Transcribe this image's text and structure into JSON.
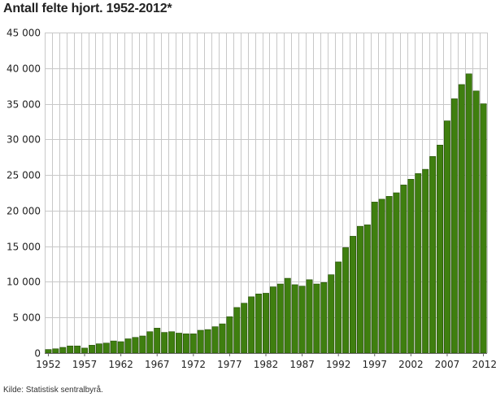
{
  "title": "Antall felte hjort. 1952-2012*",
  "source": "Kilde: Statistisk sentralbyrå.",
  "colors": {
    "bar": "#3f7f0f",
    "bar_stroke": "#234d06",
    "grid": "#c8c8c8",
    "axis": "#666666"
  },
  "chart_data": {
    "type": "bar",
    "title": "Antall felte hjort. 1952-2012*",
    "xlabel": "",
    "ylabel": "",
    "ylim": [
      0,
      45000
    ],
    "grid": true,
    "y_ticks": [
      {
        "value": 0,
        "label": "0"
      },
      {
        "value": 5000,
        "label": "5 000"
      },
      {
        "value": 10000,
        "label": "10 000"
      },
      {
        "value": 15000,
        "label": "15 000"
      },
      {
        "value": 20000,
        "label": "20 000"
      },
      {
        "value": 25000,
        "label": "25 000"
      },
      {
        "value": 30000,
        "label": "30 000"
      },
      {
        "value": 35000,
        "label": "35 000"
      },
      {
        "value": 40000,
        "label": "40 000"
      },
      {
        "value": 45000,
        "label": "45 000"
      }
    ],
    "x_tick_labels": [
      "1952",
      "1957",
      "1962",
      "1967",
      "1972",
      "1977",
      "1982",
      "1987",
      "1992",
      "1997",
      "2002",
      "2007",
      "2012*"
    ],
    "categories": [
      "1952",
      "1953",
      "1954",
      "1955",
      "1956",
      "1957",
      "1958",
      "1959",
      "1960",
      "1961",
      "1962",
      "1963",
      "1964",
      "1965",
      "1966",
      "1967",
      "1968",
      "1969",
      "1970",
      "1971",
      "1972",
      "1973",
      "1974",
      "1975",
      "1976",
      "1977",
      "1978",
      "1979",
      "1980",
      "1981",
      "1982",
      "1983",
      "1984",
      "1985",
      "1986",
      "1987",
      "1988",
      "1989",
      "1990",
      "1991",
      "1992",
      "1993",
      "1994",
      "1995",
      "1996",
      "1997",
      "1998",
      "1999",
      "2000",
      "2001",
      "2002",
      "2003",
      "2004",
      "2005",
      "2006",
      "2007",
      "2008",
      "2009",
      "2010",
      "2011",
      "2012*"
    ],
    "values": [
      500,
      600,
      800,
      1000,
      1000,
      700,
      1100,
      1300,
      1400,
      1700,
      1600,
      2000,
      2200,
      2400,
      3000,
      3500,
      2900,
      3000,
      2800,
      2700,
      2700,
      3200,
      3300,
      3700,
      4100,
      5100,
      6400,
      7000,
      7900,
      8300,
      8400,
      9300,
      9700,
      10500,
      9600,
      9400,
      10300,
      9700,
      9900,
      11000,
      12800,
      14800,
      16400,
      17800,
      18000,
      21200,
      21600,
      22000,
      22500,
      23600,
      24400,
      25200,
      25800,
      27600,
      29200,
      32600,
      35700,
      37700,
      39200,
      36800,
      35000
    ]
  }
}
